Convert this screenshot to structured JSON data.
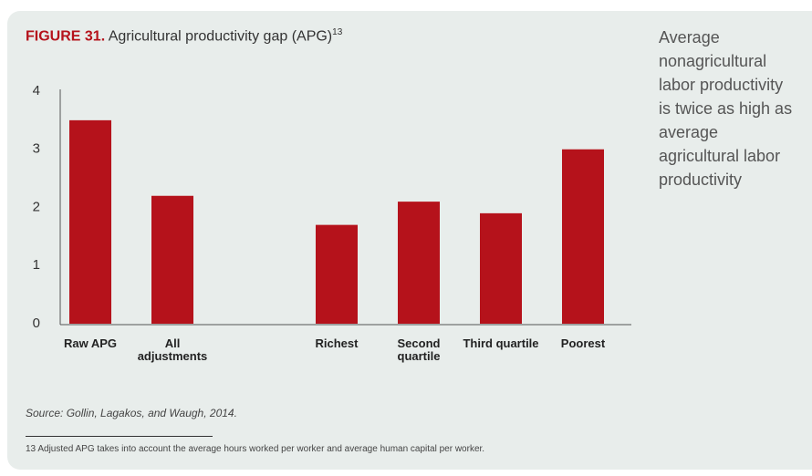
{
  "chart_data": {
    "type": "bar",
    "figure_label": "FIGURE 31.",
    "title": "Agricultural productivity gap (APG)",
    "title_note": "13",
    "categories": [
      "Raw APG",
      "All adjustments",
      null,
      "Richest",
      "Second quartile",
      "Third quartile",
      "Poorest"
    ],
    "values": [
      3.5,
      2.2,
      null,
      1.7,
      2.1,
      1.9,
      3.0
    ],
    "color": "#b5121b",
    "ylim": [
      0,
      4
    ],
    "yticks": [
      0,
      1,
      2,
      3,
      4
    ],
    "grid": false,
    "sidebar": "Average nonagricultural labor productivity is twice as high as average agricultural labor productivity",
    "source": "Source: Gollin, Lagakos, and Waugh, 2014.",
    "footnote": "13 Adjusted APG takes into account the average hours worked per worker and average human capital per worker."
  }
}
